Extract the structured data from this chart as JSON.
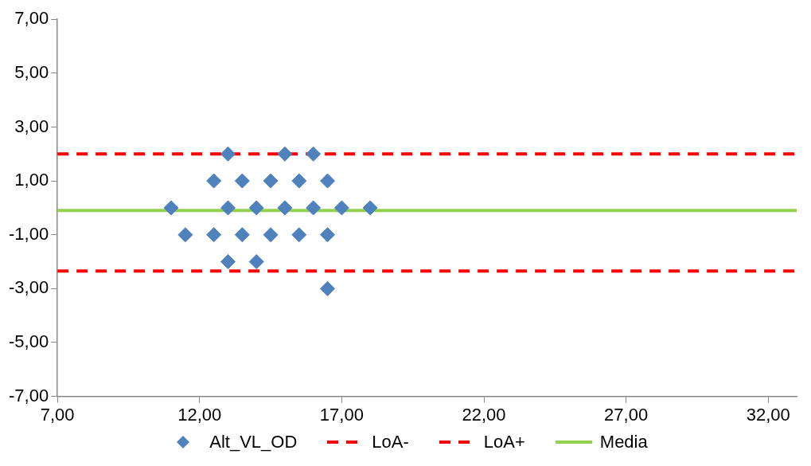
{
  "chart_data": {
    "type": "scatter",
    "legend": "bottom",
    "grid": false,
    "xlim": [
      7,
      33
    ],
    "xticks": [
      {
        "value": 7,
        "label": "7,00"
      },
      {
        "value": 12,
        "label": "12,00"
      },
      {
        "value": 17,
        "label": "17,00"
      },
      {
        "value": 22,
        "label": "22,00"
      },
      {
        "value": 27,
        "label": "27,00"
      },
      {
        "value": 32,
        "label": "32,00"
      }
    ],
    "ylim": [
      -7,
      7
    ],
    "yticks": [
      {
        "value": -7,
        "label": "-7,00"
      },
      {
        "value": -5,
        "label": "-5,00"
      },
      {
        "value": -3,
        "label": "-3,00"
      },
      {
        "value": -1,
        "label": "-1,00"
      },
      {
        "value": 1,
        "label": "1,00"
      },
      {
        "value": 3,
        "label": "3,00"
      },
      {
        "value": 5,
        "label": "5,00"
      },
      {
        "value": 7,
        "label": "7,00"
      }
    ],
    "series": [
      {
        "name": "Alt_VL_OD",
        "marker": "diamond",
        "color": "#4f81bd",
        "x": [
          13,
          15,
          16,
          12.5,
          13.5,
          14.5,
          15.5,
          16.5,
          11,
          13,
          14,
          15,
          16,
          17,
          18,
          11.5,
          12.5,
          13.5,
          14.5,
          15.5,
          16.5,
          13,
          14,
          16.5
        ],
        "values": [
          2,
          2,
          2,
          1,
          1,
          1,
          1,
          1,
          0,
          0,
          0,
          0,
          0,
          0,
          0,
          -1,
          -1,
          -1,
          -1,
          -1,
          -1,
          -2,
          -2,
          -3
        ]
      },
      {
        "name": "LoA-",
        "type": "line",
        "marker": "none",
        "line_style": "dashed",
        "color": "#ff0000",
        "x": [
          7,
          33
        ],
        "values": [
          -2.35,
          -2.35
        ]
      },
      {
        "name": "LoA+",
        "type": "line",
        "marker": "none",
        "line_style": "dashed",
        "color": "#ff0000",
        "x": [
          7,
          33
        ],
        "values": [
          2,
          2
        ]
      },
      {
        "name": "Media",
        "type": "line",
        "marker": "none",
        "line_style": "solid",
        "color": "#92d050",
        "x": [
          7,
          33
        ],
        "values": [
          -0.1,
          -0.1
        ]
      }
    ]
  }
}
